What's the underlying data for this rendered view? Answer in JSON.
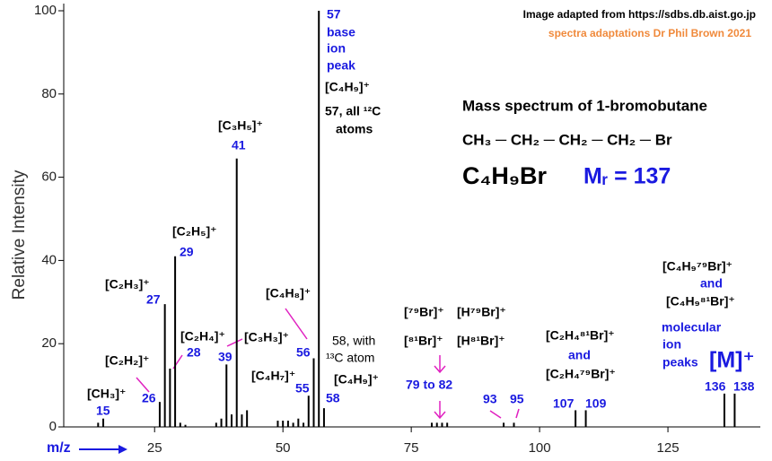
{
  "chart_data": {
    "type": "stick",
    "title": "Mass spectrum of 1-bromobutane",
    "formula": "CH₃ ─ CH₂ ─ CH₂ ─ CH₂ ─ Br",
    "molecular_formula": "C₄H₉Br",
    "molar_mass": "Mᵣ = 137",
    "source": "Image adapted from https://sdbs.db.aist.go.jp",
    "credit": "spectra adaptations Dr Phil Brown 2021",
    "x_label": "m/z",
    "y_label": "Relative Intensity",
    "x": [
      14,
      15,
      26,
      27,
      28,
      29,
      30,
      31,
      37,
      38,
      39,
      40,
      41,
      42,
      43,
      49,
      50,
      51,
      52,
      53,
      54,
      55,
      56,
      57,
      58,
      79,
      80,
      81,
      82,
      93,
      95,
      107,
      109,
      136,
      138
    ],
    "values": [
      1,
      2,
      6,
      29.5,
      14,
      41,
      1,
      0.5,
      1,
      2,
      15,
      3,
      64.5,
      3,
      4,
      1.5,
      1.5,
      1.5,
      1,
      2,
      1,
      7.5,
      16.5,
      100,
      4.5,
      1,
      1,
      1,
      1,
      1,
      1,
      4,
      4,
      8,
      8
    ],
    "color": "#000000",
    "xlim": [
      7.3,
      143
    ],
    "xticks": [
      25,
      50,
      75,
      100,
      125
    ],
    "ylim": [
      0,
      100
    ],
    "yticks": [
      0,
      20,
      40,
      60,
      80,
      100
    ],
    "annotations": [
      "57",
      "base",
      "ion",
      "peak",
      "[C₄H₉]⁺",
      "57, all ¹²C",
      "atoms",
      "[C₃H₅]⁺",
      "41",
      "[C₂H₅]⁺",
      "29",
      "[C₂H₃]⁺",
      "27",
      "[C₂H₄]⁺",
      "28",
      "[C₃H₃]⁺",
      "39",
      "[C₂H₂]⁺",
      "26",
      "[CH₃]⁺",
      "15",
      "[C₄H₈]⁺",
      "56",
      "[C₄H₇]⁺",
      "55",
      "58, with",
      "¹³C atom",
      "[C₄H₉]⁺",
      "58",
      "[⁷⁹Br]⁺",
      "[⁸¹Br]⁺",
      "[H⁷⁹Br]⁺",
      "[H⁸¹Br]⁺",
      "79 to 82",
      "93",
      "95",
      "[C₂H₄⁸¹Br]⁺",
      "and",
      "[C₂H₄⁷⁹Br]⁺",
      "107",
      "109",
      "[C₄H₉⁷⁹Br]⁺",
      "and",
      "[C₄H₉⁸¹Br]⁺",
      "molecular",
      "ion",
      "peaks",
      "[M]⁺",
      "136",
      "138"
    ]
  }
}
